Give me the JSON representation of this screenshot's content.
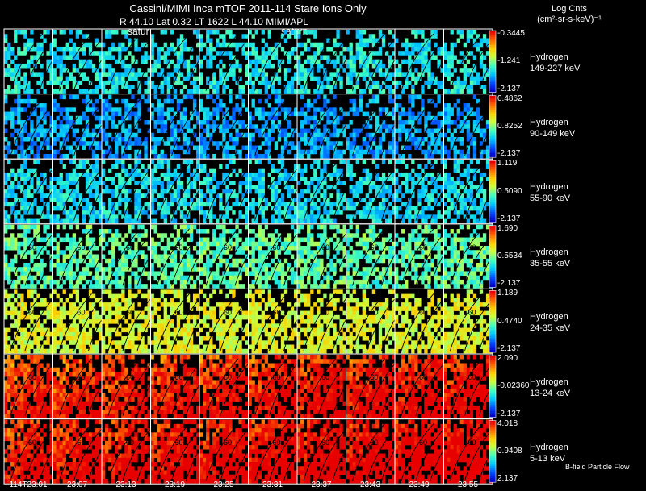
{
  "header": {
    "title": "Cassini/MIMI Inca mTOF  2011-114   Stare   Ions Only",
    "subtitle_left": "R        44.10 Lat 0.32 LT 1622 L        44.10  MIMI/APL",
    "saturn_labels": [
      "satur",
      "saturn"
    ],
    "colorbar_title_line1": "Log Cnts",
    "colorbar_title_line2": "(cm²-sr-s-keV)⁻¹"
  },
  "footer": {
    "note": "B-field Particle Flow"
  },
  "chart_data": {
    "type": "heatmap",
    "title": "Cassini/MIMI Inca mTOF 2011-114 Stare Ions Only",
    "species": "Hydrogen",
    "time_labels": [
      "114T23:01",
      "23:07",
      "23:13",
      "23:19",
      "23:25",
      "23:31",
      "23:37",
      "23:43",
      "23:49",
      "23:55"
    ],
    "rows": [
      {
        "species": "Hydrogen",
        "energy": "149-227 keV",
        "max": "-0.3445",
        "mid": "-1.241",
        "min": "-2.137",
        "intensity": 0.35
      },
      {
        "species": "Hydrogen",
        "energy": "90-149 keV",
        "max": "0.4862",
        "mid": "0.8252",
        "min": "-2.137",
        "intensity": 0.25
      },
      {
        "species": "Hydrogen",
        "energy": "55-90 keV",
        "max": "1.119",
        "mid": "0.5090",
        "min": "-2.137",
        "intensity": 0.33
      },
      {
        "species": "Hydrogen",
        "energy": "35-55 keV",
        "max": "1.690",
        "mid": "0.5534",
        "min": "-2.137",
        "intensity": 0.45
      },
      {
        "species": "Hydrogen",
        "energy": "24-35 keV",
        "max": "1.189",
        "mid": "0.4740",
        "min": "-2.137",
        "intensity": 0.62
      },
      {
        "species": "Hydrogen",
        "energy": "13-24 keV",
        "max": "2.090",
        "mid": "-0.02360",
        "min": "-2.137",
        "intensity": 0.8
      },
      {
        "species": "Hydrogen",
        "energy": "5-13 keV",
        "max": "4.018",
        "mid": "0.9408",
        "min": "2.137",
        "intensity": 0.85
      }
    ],
    "contour_labels": [
      "30",
      "60",
      "90"
    ],
    "colormap": [
      "#0000c8",
      "#0050ff",
      "#00c8ff",
      "#40ffc0",
      "#c8ff40",
      "#ffd000",
      "#ff6a00",
      "#e80000"
    ]
  }
}
